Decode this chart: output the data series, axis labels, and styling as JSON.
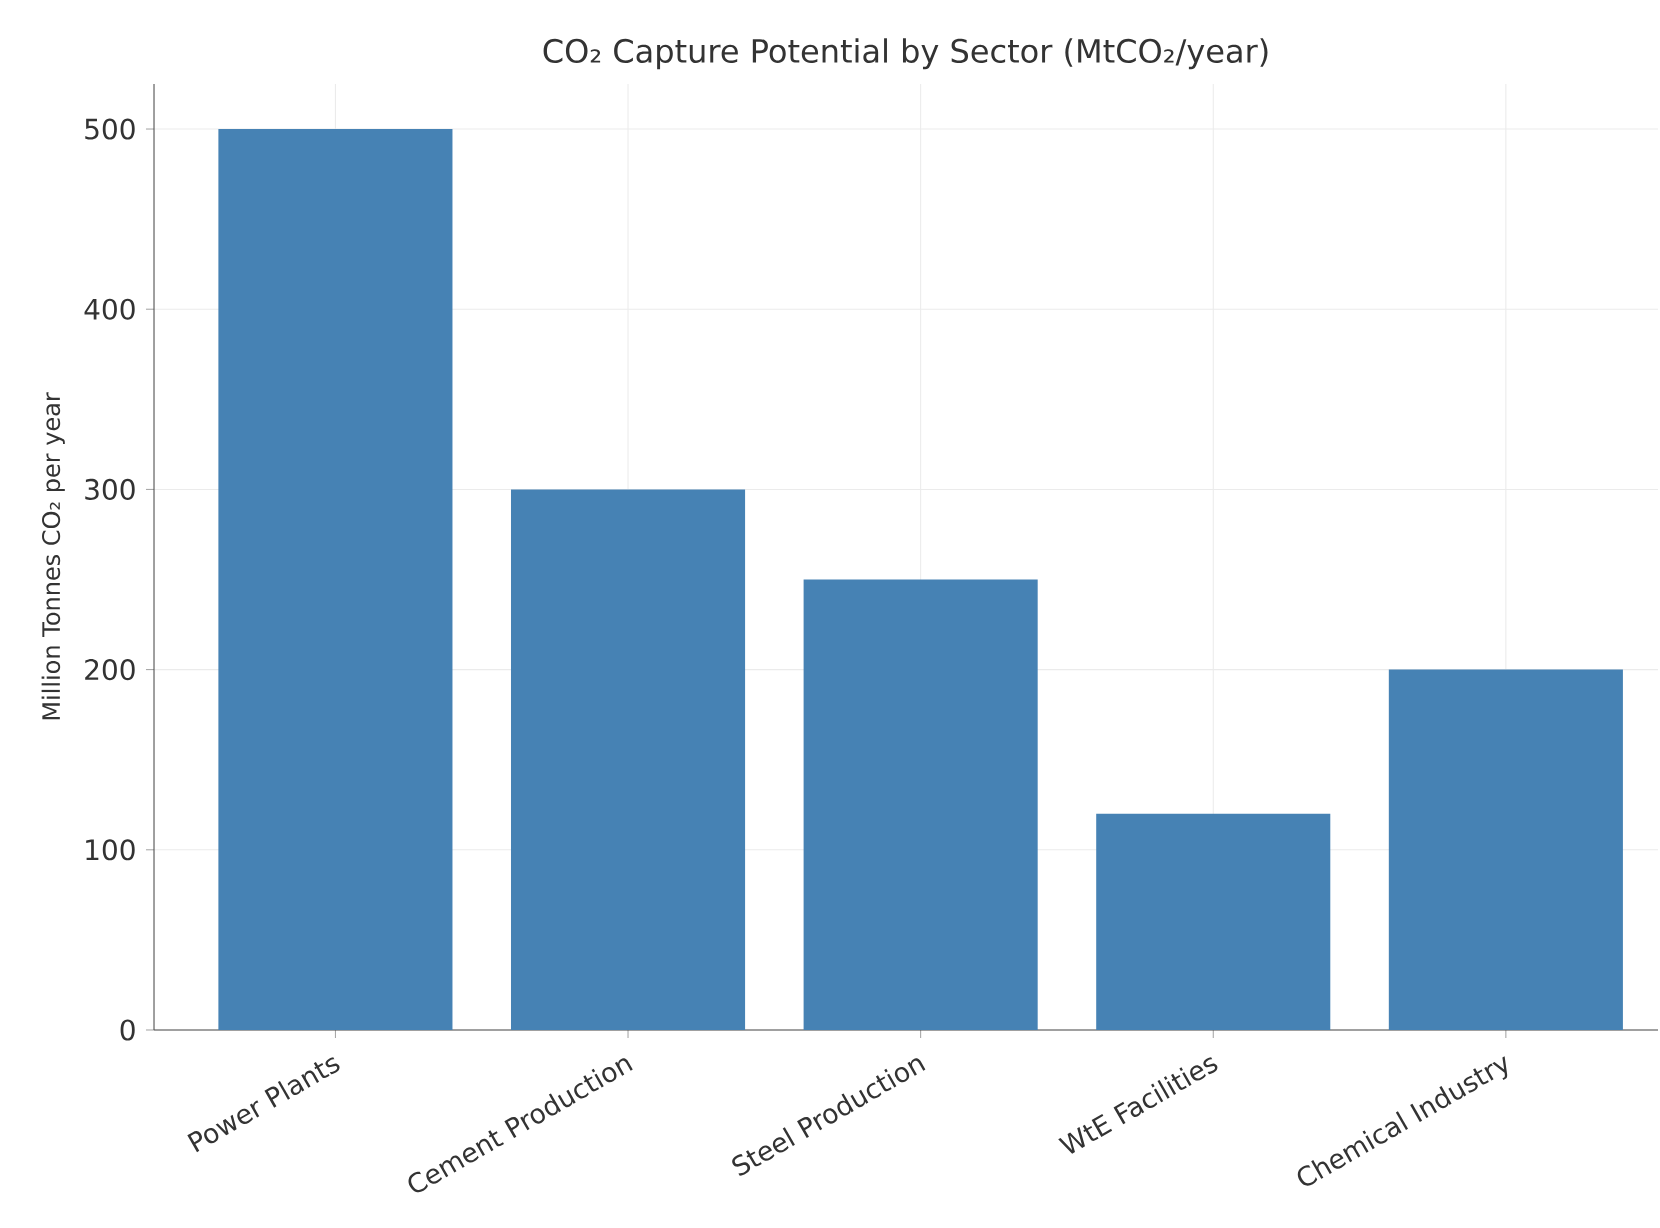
{
  "chart_data": {
    "type": "bar",
    "title": "CO₂ Capture Potential by Sector (MtCO₂/year)",
    "ylabel": "Million Tonnes CO₂ per year",
    "categories": [
      "Power Plants",
      "Cement Production",
      "Steel Production",
      "WtE Facilities",
      "Chemical Industry"
    ],
    "values": [
      500,
      300,
      250,
      120,
      200
    ],
    "color": "#4682b4",
    "ylim": [
      0,
      525
    ],
    "yticks": [
      0,
      100,
      200,
      300,
      400,
      500
    ],
    "grid": true
  }
}
